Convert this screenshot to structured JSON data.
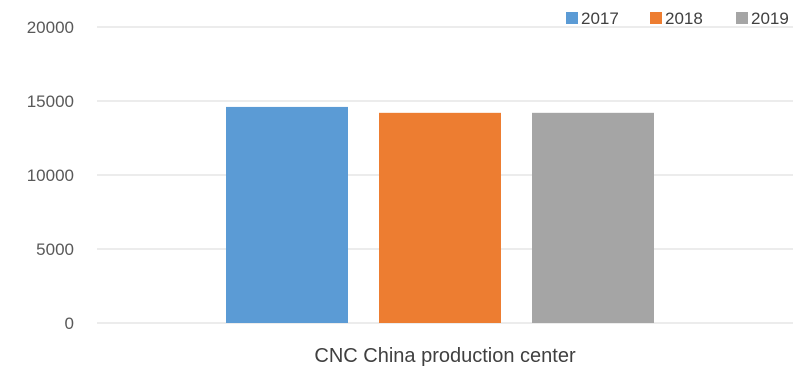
{
  "chart_data": {
    "type": "bar",
    "categories": [
      "CNC China production center"
    ],
    "series": [
      {
        "name": "2017",
        "values": [
          14600
        ],
        "color": "#5b9bd5"
      },
      {
        "name": "2018",
        "values": [
          14200
        ],
        "color": "#ed7d31"
      },
      {
        "name": "2019",
        "values": [
          14200
        ],
        "color": "#a5a5a5"
      }
    ],
    "yticks": [
      "0",
      "5000",
      "10000",
      "15000",
      "20000"
    ],
    "ylim": [
      0,
      20000
    ],
    "grid": true,
    "legend": "top-right"
  }
}
